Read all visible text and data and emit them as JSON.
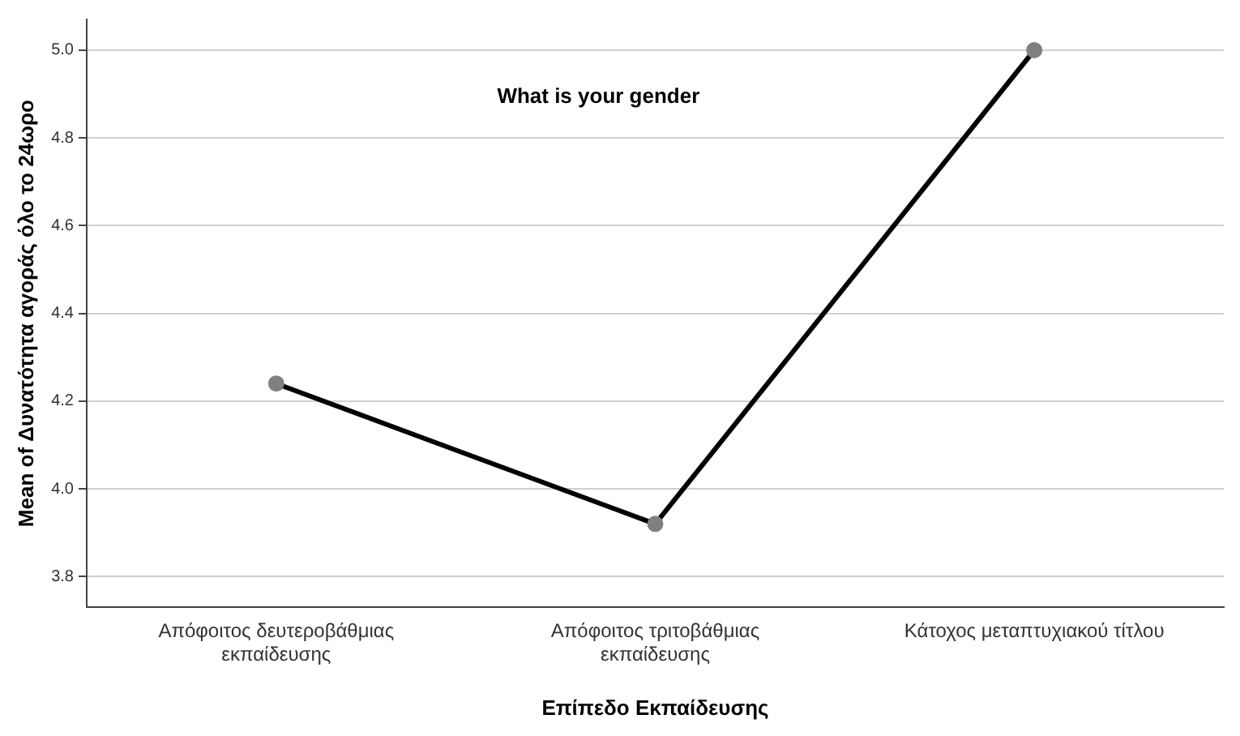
{
  "chart_data": {
    "type": "line",
    "xlabel": "Επίπεδο Εκπαίδευσης",
    "ylabel": "Mean of Δυνατότητα αγοράς όλο το 24ωρο",
    "annotations": [
      "What is your gender"
    ],
    "categories": [
      "Απόφοιτος δευτεροβάθμιας εκπαίδευσης",
      "Απόφοιτος τριτοβάθμιας εκπαίδευσης",
      "Κάτοχος μεταπτυχιακού τίτλου"
    ],
    "series": [
      {
        "color": "#000000",
        "values": [
          4.24,
          3.92,
          5.0
        ]
      }
    ],
    "ylim": [
      3.73,
      5.07
    ],
    "yticks": [
      3.8,
      {
        "value": 4,
        "label": "4.0"
      },
      4.2,
      4.4,
      4.6,
      4.8,
      {
        "value": 5,
        "label": "5.0"
      }
    ],
    "grid": "y",
    "marker": "circle",
    "line_style": "solid",
    "legend": false
  }
}
